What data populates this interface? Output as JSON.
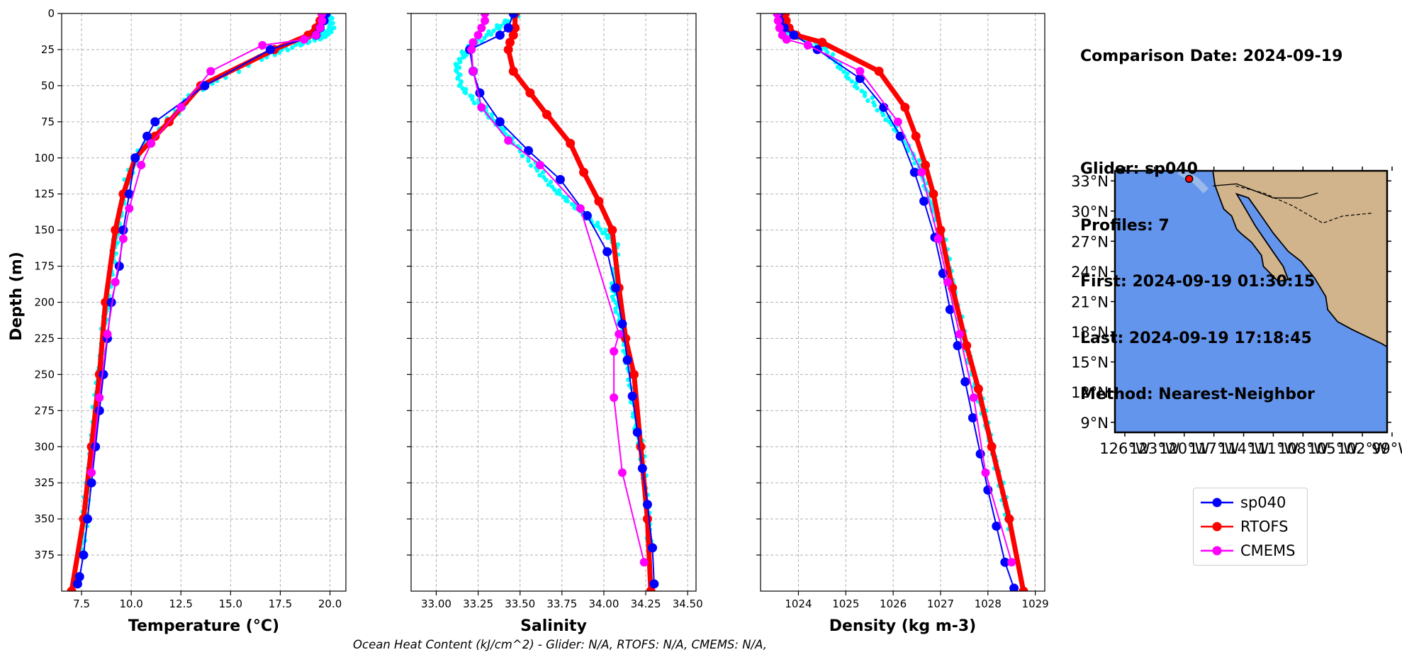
{
  "info": {
    "comparison": "Comparison Date: 2024-09-19",
    "glider": "Glider: sp040",
    "profiles": "Profiles: 7",
    "first": "First: 2024-09-19 01:30:15",
    "last": "Last: 2024-09-19 17:18:45",
    "method": "Method: Nearest-Neighbor"
  },
  "footer": "Ocean Heat Content (kJ/cm^2) - Glider: N/A,  RTOFS: N/A,  CMEMS: N/A,",
  "legend": [
    {
      "name": "sp040",
      "color": "#0000ff"
    },
    {
      "name": "RTOFS",
      "color": "#ff0000"
    },
    {
      "name": "CMEMS",
      "color": "#ff00ff"
    }
  ],
  "colors": {
    "glider_points": "#00ffff",
    "ocean": "#6495ed",
    "land": "#d2b48c",
    "shelf": "#a9c3e8"
  },
  "map": {
    "lat_ticks": [
      "33°N",
      "30°N",
      "27°N",
      "24°N",
      "21°N",
      "18°N",
      "15°N",
      "12°N",
      "9°N"
    ],
    "lon_ticks": [
      "126°W",
      "123°W",
      "120°W",
      "117°W",
      "114°W",
      "111°W",
      "108°W",
      "105°W",
      "102°W",
      "99°W"
    ],
    "lat_values": [
      33,
      30,
      27,
      24,
      21,
      18,
      15,
      12,
      9
    ],
    "lon_values": [
      -126,
      -123,
      -120,
      -117,
      -114,
      -111,
      -108,
      -105,
      -102,
      -99
    ],
    "lat_range": [
      8,
      34
    ],
    "lon_range": [
      -127,
      -99.5
    ],
    "glider_position": {
      "lon": -119.5,
      "lat": 33.2
    }
  },
  "chart_data": [
    {
      "type": "line",
      "xlabel": "Temperature (°C)",
      "ylabel": "Depth (m)",
      "xlim": [
        6.5,
        20.8
      ],
      "ylim": [
        400,
        0
      ],
      "x_ticks": [
        7.5,
        10.0,
        12.5,
        15.0,
        17.5,
        20.0
      ],
      "x_tick_labels": [
        "7.5",
        "10.0",
        "12.5",
        "15.0",
        "17.5",
        "20.0"
      ],
      "y_ticks": [
        0,
        25,
        50,
        75,
        100,
        125,
        150,
        175,
        200,
        225,
        250,
        275,
        300,
        325,
        350,
        375
      ],
      "y_tick_labels": [
        "0",
        "25",
        "50",
        "75",
        "100",
        "125",
        "150",
        "175",
        "200",
        "225",
        "250",
        "275",
        "300",
        "325",
        "350",
        "375"
      ],
      "grid": true,
      "series": [
        {
          "name": "RTOFS",
          "x": [
            19.6,
            19.5,
            19.3,
            18.9,
            17.2,
            13.5,
            11.9,
            11.2,
            10.2,
            9.6,
            9.2,
            8.7,
            8.4,
            8.0,
            7.6,
            7.0,
            6.7
          ],
          "y": [
            0,
            5,
            10,
            15,
            25,
            50,
            75,
            85,
            100,
            125,
            150,
            200,
            250,
            300,
            350,
            400,
            410
          ]
        },
        {
          "name": "sp040",
          "x": [
            19.8,
            19.7,
            19.5,
            19.3,
            17.0,
            13.7,
            11.2,
            10.8,
            10.2,
            9.9,
            9.6,
            9.4,
            9.0,
            8.8,
            8.6,
            8.4,
            8.2,
            8.0,
            7.8,
            7.6,
            7.4,
            7.3
          ],
          "y": [
            0,
            5,
            10,
            15,
            25,
            50,
            75,
            85,
            100,
            125,
            150,
            175,
            200,
            225,
            250,
            275,
            300,
            325,
            350,
            375,
            390,
            395
          ]
        },
        {
          "name": "CMEMS",
          "x": [
            19.6,
            19.6,
            19.5,
            19.3,
            18.7,
            16.6,
            14.0,
            12.5,
            11.0,
            10.5,
            9.9,
            9.6,
            9.2,
            8.8,
            8.4,
            8.0
          ],
          "y": [
            0,
            5,
            10,
            15,
            18,
            22,
            40,
            65,
            90,
            105,
            135,
            156,
            186,
            222,
            266,
            318
          ]
        },
        {
          "name": "",
          "x": [
            19.9,
            20.1,
            19.6,
            18.5,
            16.5,
            13.0,
            12.5,
            11.4,
            10.4,
            9.8,
            9.4,
            9.2,
            8.9,
            8.7,
            8.5,
            8.3,
            8.1,
            7.9,
            7.7,
            7.5
          ],
          "y": [
            0,
            10,
            15,
            20,
            30,
            55,
            65,
            80,
            95,
            115,
            140,
            160,
            185,
            210,
            235,
            260,
            285,
            315,
            345,
            375
          ]
        }
      ]
    },
    {
      "type": "line",
      "xlabel": "Salinity",
      "xlim": [
        32.85,
        34.55
      ],
      "ylim": [
        400,
        0
      ],
      "x_ticks": [
        33.0,
        33.25,
        33.5,
        33.75,
        34.0,
        34.25,
        34.5
      ],
      "x_tick_labels": [
        "33.00",
        "33.25",
        "33.50",
        "33.75",
        "34.00",
        "34.25",
        "34.50"
      ],
      "grid": true,
      "series": [
        {
          "name": "RTOFS",
          "x": [
            33.47,
            33.47,
            33.46,
            33.44,
            33.43,
            33.46,
            33.56,
            33.66,
            33.8,
            33.88,
            33.97,
            34.05,
            34.09,
            34.13,
            34.18,
            34.22,
            34.26,
            34.28,
            34.3
          ],
          "y": [
            0,
            10,
            15,
            20,
            25,
            40,
            55,
            70,
            90,
            110,
            130,
            150,
            190,
            225,
            250,
            300,
            350,
            400,
            410
          ]
        },
        {
          "name": "sp040",
          "x": [
            33.46,
            33.43,
            33.38,
            33.2,
            33.22,
            33.26,
            33.38,
            33.55,
            33.74,
            33.9,
            34.02,
            34.07,
            34.11,
            34.14,
            34.17,
            34.2,
            34.23,
            34.26,
            34.29,
            34.3
          ],
          "y": [
            0,
            10,
            15,
            25,
            40,
            55,
            75,
            95,
            115,
            140,
            165,
            190,
            215,
            240,
            265,
            290,
            315,
            340,
            370,
            395
          ]
        },
        {
          "name": "CMEMS",
          "x": [
            33.29,
            33.29,
            33.27,
            33.25,
            33.22,
            33.21,
            33.22,
            33.27,
            33.43,
            33.62,
            33.86,
            34.09,
            34.06,
            34.06,
            34.11,
            34.24
          ],
          "y": [
            0,
            5,
            10,
            15,
            20,
            25,
            40,
            65,
            88,
            105,
            135,
            222,
            234,
            266,
            318,
            380
          ]
        },
        {
          "name": "",
          "x": [
            33.48,
            33.35,
            33.18,
            33.12,
            33.15,
            33.28,
            33.4,
            33.55,
            33.7,
            33.85,
            34.0,
            34.08,
            34.05,
            34.1,
            34.14,
            34.18,
            34.22,
            34.26,
            34.28
          ],
          "y": [
            0,
            10,
            25,
            35,
            50,
            65,
            80,
            100,
            120,
            135,
            150,
            160,
            190,
            215,
            240,
            275,
            300,
            340,
            375
          ]
        }
      ]
    },
    {
      "type": "line",
      "xlabel": "Density (kg m-3)",
      "xlim": [
        1023.2,
        1029.2
      ],
      "ylim": [
        400,
        0
      ],
      "x_ticks": [
        1024,
        1025,
        1026,
        1027,
        1028,
        1029
      ],
      "x_tick_labels": [
        "1024",
        "1025",
        "1026",
        "1027",
        "1028",
        "1029"
      ],
      "grid": true,
      "series": [
        {
          "name": "RTOFS",
          "x": [
            1023.72,
            1023.74,
            1023.8,
            1023.95,
            1024.5,
            1025.7,
            1026.25,
            1026.48,
            1026.68,
            1026.85,
            1027.0,
            1027.25,
            1027.55,
            1027.8,
            1028.08,
            1028.45,
            1028.75
          ],
          "y": [
            0,
            5,
            10,
            15,
            20,
            40,
            65,
            85,
            105,
            125,
            150,
            190,
            230,
            260,
            300,
            350,
            400
          ]
        },
        {
          "name": "sp040",
          "x": [
            1023.58,
            1023.6,
            1023.7,
            1023.9,
            1024.4,
            1025.3,
            1025.8,
            1026.15,
            1026.45,
            1026.65,
            1026.88,
            1027.05,
            1027.2,
            1027.36,
            1027.52,
            1027.68,
            1027.84,
            1028.0,
            1028.18,
            1028.36,
            1028.55
          ],
          "y": [
            0,
            5,
            10,
            15,
            25,
            45,
            65,
            85,
            110,
            130,
            155,
            180,
            205,
            230,
            255,
            280,
            305,
            330,
            355,
            380,
            398
          ]
        },
        {
          "name": "CMEMS",
          "x": [
            1023.55,
            1023.57,
            1023.6,
            1023.66,
            1023.75,
            1024.2,
            1025.3,
            1026.1,
            1026.6,
            1026.95,
            1027.15,
            1027.4,
            1027.7,
            1027.95,
            1028.5
          ],
          "y": [
            0,
            5,
            10,
            15,
            18,
            22,
            40,
            75,
            110,
            156,
            186,
            222,
            266,
            318,
            380
          ]
        },
        {
          "name": "",
          "x": [
            1023.62,
            1023.66,
            1024.0,
            1024.6,
            1025.1,
            1025.7,
            1026.2,
            1026.55,
            1026.8,
            1027.0,
            1027.15,
            1027.3,
            1027.5,
            1027.7,
            1027.9,
            1028.1,
            1028.3,
            1028.48
          ],
          "y": [
            0,
            10,
            15,
            25,
            45,
            65,
            85,
            105,
            130,
            150,
            170,
            195,
            225,
            250,
            275,
            300,
            330,
            360
          ]
        }
      ]
    }
  ]
}
